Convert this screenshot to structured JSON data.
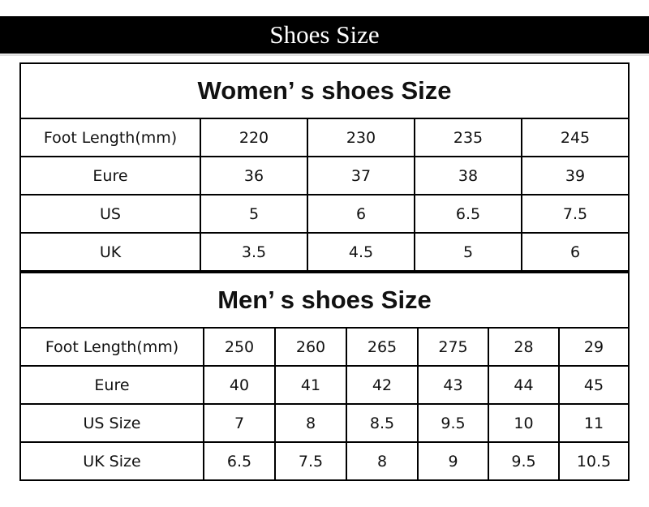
{
  "header": {
    "title": "Shoes Size"
  },
  "women": {
    "title": "Women’ s  shoes Size",
    "rows": [
      {
        "label": "Foot Length(mm)",
        "values": [
          "220",
          "230",
          "235",
          "245"
        ]
      },
      {
        "label": "Eure",
        "values": [
          "36",
          "37",
          "38",
          "39"
        ]
      },
      {
        "label": "US",
        "values": [
          "5",
          "6",
          "6.5",
          "7.5"
        ]
      },
      {
        "label": "UK",
        "values": [
          "3.5",
          "4.5",
          "5",
          "6"
        ]
      }
    ]
  },
  "men": {
    "title": "Men’ s  shoes Size",
    "rows": [
      {
        "label": "Foot Length(mm)",
        "values": [
          "250",
          "260",
          "265",
          "275",
          "28",
          "29"
        ]
      },
      {
        "label": "Eure",
        "values": [
          "40",
          "41",
          "42",
          "43",
          "44",
          "45"
        ]
      },
      {
        "label": "US Size",
        "values": [
          "7",
          "8",
          "8.5",
          "9.5",
          "10",
          "11"
        ]
      },
      {
        "label": "UK Size",
        "values": [
          "6.5",
          "7.5",
          "8",
          "9",
          "9.5",
          "10.5"
        ]
      }
    ]
  }
}
